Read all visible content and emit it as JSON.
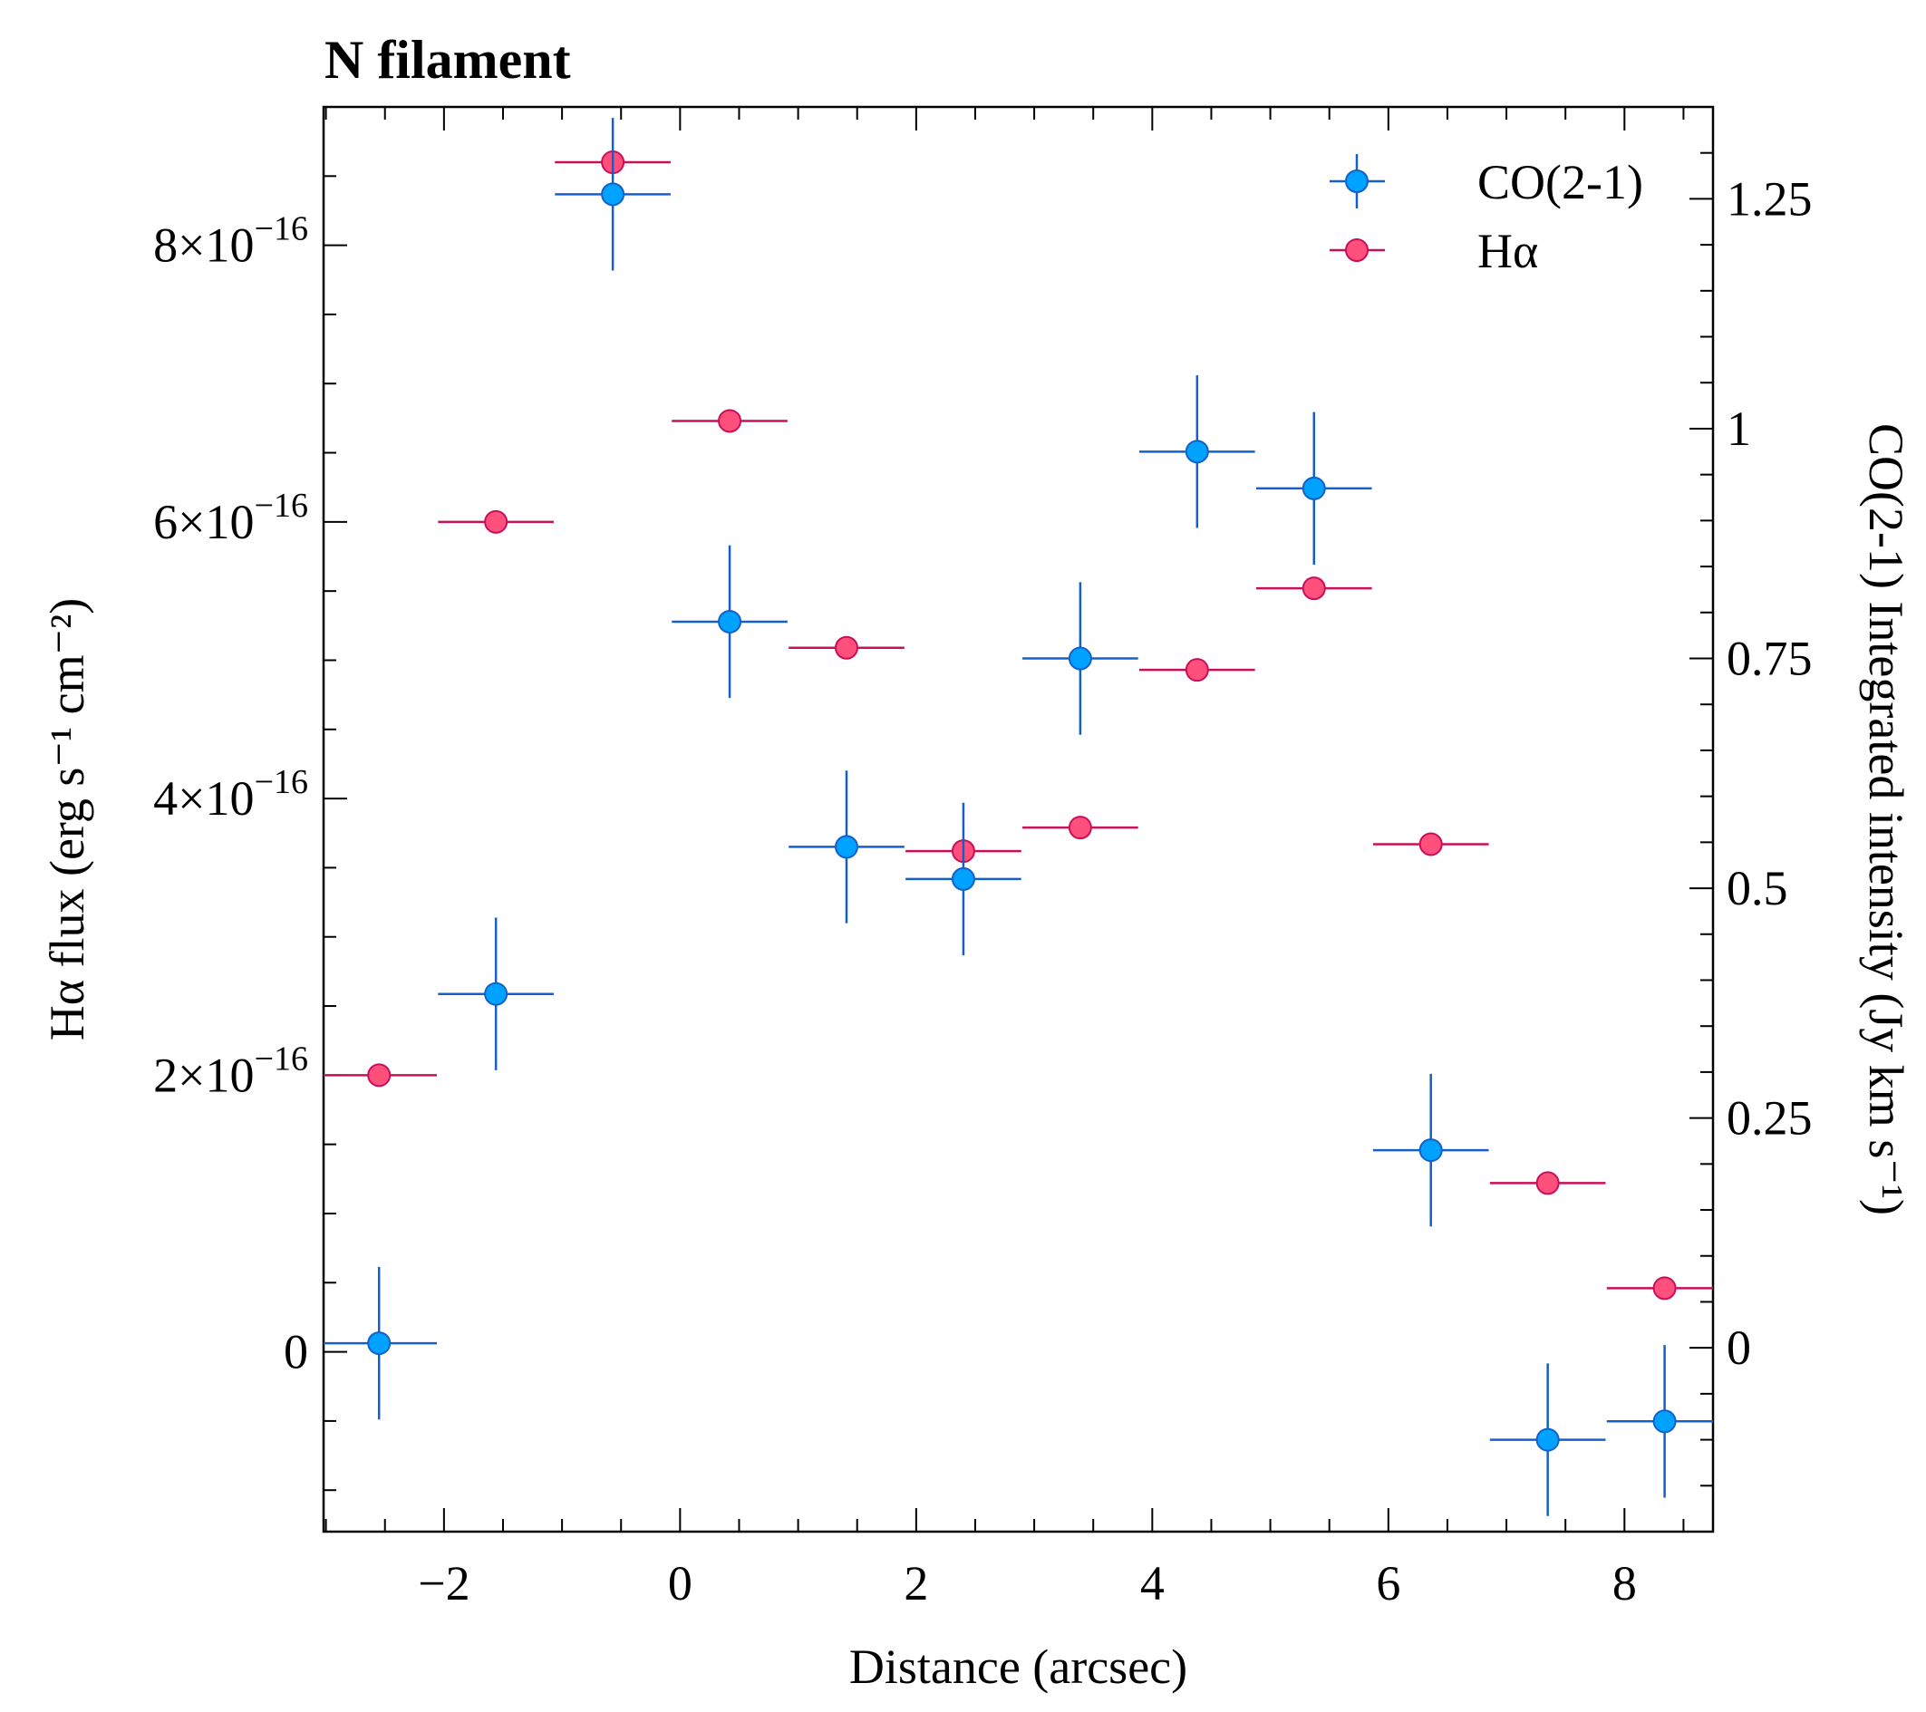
{
  "chart_data": {
    "type": "scatter",
    "title": "N filament",
    "xlabel": "Distance (arcsec)",
    "ylabel_left": "Hα flux (erg s⁻¹ cm⁻²)",
    "ylabel_right": "CO(2-1) Integrated intensity (Jy km s⁻¹)",
    "xlim": [
      -3.02,
      8.75
    ],
    "ylim_left": [
      -1.3e-16,
      9e-16
    ],
    "ylim_right": [
      -0.2,
      1.35
    ],
    "x_ticks": [
      {
        "value": -2,
        "label": "−2"
      },
      {
        "value": 0,
        "label": "0"
      },
      {
        "value": 2,
        "label": "2"
      },
      {
        "value": 4,
        "label": "4"
      },
      {
        "value": 6,
        "label": "6"
      },
      {
        "value": 8,
        "label": "8"
      }
    ],
    "left_ticks": [
      {
        "value": 0,
        "mantissa": "0",
        "exponent": ""
      },
      {
        "value": 2e-16,
        "mantissa": "2×10",
        "exponent": "−16"
      },
      {
        "value": 4e-16,
        "mantissa": "4×10",
        "exponent": "−16"
      },
      {
        "value": 6e-16,
        "mantissa": "6×10",
        "exponent": "−16"
      },
      {
        "value": 8e-16,
        "mantissa": "8×10",
        "exponent": "−16"
      }
    ],
    "right_ticks": [
      {
        "value": 0,
        "label": "0"
      },
      {
        "value": 0.25,
        "label": "0.25"
      },
      {
        "value": 0.5,
        "label": "0.5"
      },
      {
        "value": 0.75,
        "label": "0.75"
      },
      {
        "value": 1.0,
        "label": "1"
      },
      {
        "value": 1.25,
        "label": "1.25"
      }
    ],
    "legend_position": "top-right",
    "series": [
      {
        "name": "CO(2-1)",
        "axis": "right",
        "color": "#00a2ff",
        "edge_color": "#1560c8",
        "x": [
          -2.55,
          -1.56,
          -0.57,
          0.42,
          1.41,
          2.4,
          3.39,
          4.38,
          5.37,
          6.36,
          7.35,
          8.34
        ],
        "y": [
          0.005,
          0.385,
          1.255,
          0.79,
          0.545,
          0.51,
          0.75,
          0.975,
          0.935,
          0.215,
          -0.1,
          -0.08
        ],
        "xerr": 0.49,
        "yerr": [
          0.083,
          0.083,
          0.083,
          0.083,
          0.083,
          0.083,
          0.083,
          0.083,
          0.083,
          0.083,
          0.083,
          0.083
        ]
      },
      {
        "name": "Hα",
        "axis": "left",
        "color": "#ff4f7b",
        "edge_color": "#c8105a",
        "x": [
          -2.55,
          -1.56,
          -0.57,
          0.42,
          1.41,
          2.4,
          3.39,
          4.38,
          5.37,
          6.36,
          7.35,
          8.34
        ],
        "y": [
          2e-16,
          6e-16,
          8.6e-16,
          6.73e-16,
          5.09e-16,
          3.62e-16,
          3.79e-16,
          4.93e-16,
          5.52e-16,
          3.67e-16,
          1.22e-16,
          4.6e-17
        ],
        "xerr": 0.49
      }
    ]
  }
}
